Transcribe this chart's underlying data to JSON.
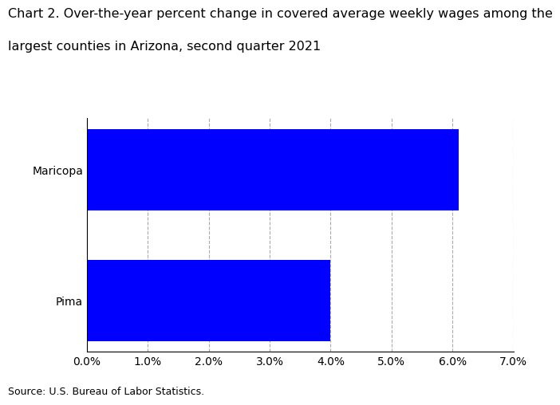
{
  "title_line1": "Chart 2. Over-the-year percent change in covered average weekly wages among the",
  "title_line2": "largest counties in Arizona, second quarter 2021",
  "categories": [
    "Pima",
    "Maricopa"
  ],
  "values": [
    0.04,
    0.061
  ],
  "bar_color": "#0000FF",
  "xlim": [
    0,
    0.07
  ],
  "xticks": [
    0.0,
    0.01,
    0.02,
    0.03,
    0.04,
    0.05,
    0.06,
    0.07
  ],
  "xtick_labels": [
    "0.0%",
    "1.0%",
    "2.0%",
    "3.0%",
    "4.0%",
    "5.0%",
    "6.0%",
    "7.0%"
  ],
  "source": "Source: U.S. Bureau of Labor Statistics.",
  "title_fontsize": 11.5,
  "tick_fontsize": 10,
  "source_fontsize": 9,
  "bar_height": 0.62,
  "grid_color": "#aaaaaa",
  "background_color": "#ffffff"
}
